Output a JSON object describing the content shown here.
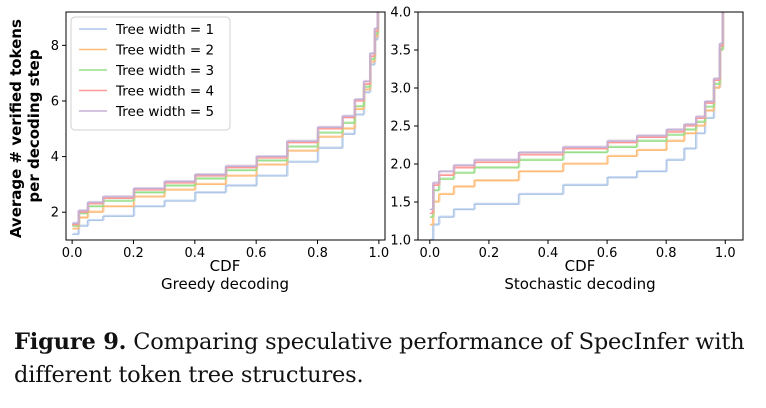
{
  "chart_data": [
    {
      "type": "line",
      "subtitle": "Greedy decoding",
      "xlabel": "CDF",
      "ylabel": "Average # verified tokens per decoding step",
      "xlim": [
        -0.02,
        1.02
      ],
      "ylim": [
        1.0,
        9.2
      ],
      "xticks": [
        0.0,
        0.2,
        0.4,
        0.6,
        0.8,
        1.0
      ],
      "xtick_labels": [
        "0.0",
        "0.2",
        "0.4",
        "0.6",
        "0.8",
        "1.0"
      ],
      "yticks": [
        2,
        4,
        6,
        8
      ],
      "ytick_labels": [
        "2",
        "4",
        "6",
        "8"
      ],
      "legend_position": "top-left",
      "series": [
        {
          "name": "Tree width = 1",
          "color": "#aec7e8",
          "points": [
            [
              0.0,
              1.2
            ],
            [
              0.02,
              1.5
            ],
            [
              0.05,
              1.7
            ],
            [
              0.1,
              1.85
            ],
            [
              0.2,
              2.2
            ],
            [
              0.3,
              2.4
            ],
            [
              0.4,
              2.7
            ],
            [
              0.5,
              2.95
            ],
            [
              0.6,
              3.3
            ],
            [
              0.7,
              3.8
            ],
            [
              0.8,
              4.3
            ],
            [
              0.88,
              4.8
            ],
            [
              0.92,
              5.5
            ],
            [
              0.95,
              6.3
            ],
            [
              0.97,
              7.3
            ],
            [
              0.985,
              8.2
            ],
            [
              0.995,
              9.2
            ]
          ]
        },
        {
          "name": "Tree width = 2",
          "color": "#ffbb78",
          "points": [
            [
              0.0,
              1.4
            ],
            [
              0.02,
              1.8
            ],
            [
              0.05,
              2.0
            ],
            [
              0.1,
              2.2
            ],
            [
              0.2,
              2.55
            ],
            [
              0.3,
              2.8
            ],
            [
              0.4,
              3.0
            ],
            [
              0.5,
              3.3
            ],
            [
              0.6,
              3.7
            ],
            [
              0.7,
              4.2
            ],
            [
              0.8,
              4.7
            ],
            [
              0.88,
              5.0
            ],
            [
              0.92,
              5.7
            ],
            [
              0.95,
              6.4
            ],
            [
              0.97,
              7.4
            ],
            [
              0.985,
              8.3
            ],
            [
              0.995,
              9.2
            ]
          ]
        },
        {
          "name": "Tree width = 3",
          "color": "#98df8a",
          "points": [
            [
              0.0,
              1.5
            ],
            [
              0.02,
              1.95
            ],
            [
              0.05,
              2.2
            ],
            [
              0.1,
              2.4
            ],
            [
              0.2,
              2.7
            ],
            [
              0.3,
              2.95
            ],
            [
              0.4,
              3.2
            ],
            [
              0.5,
              3.5
            ],
            [
              0.6,
              3.85
            ],
            [
              0.7,
              4.35
            ],
            [
              0.8,
              4.85
            ],
            [
              0.88,
              5.2
            ],
            [
              0.92,
              5.8
            ],
            [
              0.95,
              6.5
            ],
            [
              0.97,
              7.5
            ],
            [
              0.985,
              8.4
            ],
            [
              0.995,
              9.2
            ]
          ]
        },
        {
          "name": "Tree width = 4",
          "color": "#ff9896",
          "points": [
            [
              0.0,
              1.55
            ],
            [
              0.02,
              2.0
            ],
            [
              0.05,
              2.3
            ],
            [
              0.1,
              2.5
            ],
            [
              0.2,
              2.8
            ],
            [
              0.3,
              3.05
            ],
            [
              0.4,
              3.3
            ],
            [
              0.5,
              3.6
            ],
            [
              0.6,
              3.95
            ],
            [
              0.7,
              4.5
            ],
            [
              0.8,
              5.0
            ],
            [
              0.88,
              5.4
            ],
            [
              0.92,
              6.0
            ],
            [
              0.95,
              6.6
            ],
            [
              0.97,
              7.6
            ],
            [
              0.985,
              8.5
            ],
            [
              0.995,
              9.2
            ]
          ]
        },
        {
          "name": "Tree width = 5",
          "color": "#c5b0d5",
          "points": [
            [
              0.0,
              1.6
            ],
            [
              0.02,
              2.05
            ],
            [
              0.05,
              2.35
            ],
            [
              0.1,
              2.55
            ],
            [
              0.2,
              2.85
            ],
            [
              0.3,
              3.1
            ],
            [
              0.4,
              3.35
            ],
            [
              0.5,
              3.65
            ],
            [
              0.6,
              4.0
            ],
            [
              0.7,
              4.55
            ],
            [
              0.8,
              5.05
            ],
            [
              0.88,
              5.45
            ],
            [
              0.92,
              6.05
            ],
            [
              0.95,
              6.7
            ],
            [
              0.97,
              7.7
            ],
            [
              0.985,
              8.6
            ],
            [
              0.995,
              9.2
            ]
          ]
        }
      ]
    },
    {
      "type": "line",
      "subtitle": "Stochastic decoding",
      "xlabel": "CDF",
      "ylabel": "",
      "xlim": [
        -0.04,
        1.06
      ],
      "ylim": [
        1.0,
        4.0
      ],
      "xticks": [
        0.0,
        0.2,
        0.4,
        0.6,
        0.8,
        1.0
      ],
      "xtick_labels": [
        "0.0",
        "0.2",
        "0.4",
        "0.6",
        "0.8",
        "1.0"
      ],
      "yticks": [
        1.0,
        1.5,
        2.0,
        2.5,
        3.0,
        3.5,
        4.0
      ],
      "ytick_labels": [
        "1.0",
        "1.5",
        "2.0",
        "2.5",
        "3.0",
        "3.5",
        "4.0"
      ],
      "series": [
        {
          "name": "Tree width = 1",
          "color": "#aec7e8",
          "points": [
            [
              0.0,
              1.0
            ],
            [
              0.01,
              1.2
            ],
            [
              0.03,
              1.3
            ],
            [
              0.08,
              1.4
            ],
            [
              0.15,
              1.47
            ],
            [
              0.3,
              1.6
            ],
            [
              0.45,
              1.72
            ],
            [
              0.6,
              1.82
            ],
            [
              0.7,
              1.9
            ],
            [
              0.8,
              2.05
            ],
            [
              0.86,
              2.2
            ],
            [
              0.9,
              2.4
            ],
            [
              0.93,
              2.6
            ],
            [
              0.96,
              3.0
            ],
            [
              0.98,
              3.5
            ],
            [
              0.99,
              4.0
            ]
          ]
        },
        {
          "name": "Tree width = 2",
          "color": "#ffbb78",
          "points": [
            [
              0.0,
              1.2
            ],
            [
              0.01,
              1.5
            ],
            [
              0.03,
              1.6
            ],
            [
              0.08,
              1.7
            ],
            [
              0.15,
              1.78
            ],
            [
              0.3,
              1.9
            ],
            [
              0.45,
              2.0
            ],
            [
              0.6,
              2.1
            ],
            [
              0.7,
              2.18
            ],
            [
              0.8,
              2.3
            ],
            [
              0.86,
              2.4
            ],
            [
              0.9,
              2.5
            ],
            [
              0.93,
              2.7
            ],
            [
              0.96,
              3.0
            ],
            [
              0.98,
              3.5
            ],
            [
              0.99,
              4.0
            ]
          ]
        },
        {
          "name": "Tree width = 3",
          "color": "#98df8a",
          "points": [
            [
              0.0,
              1.3
            ],
            [
              0.01,
              1.65
            ],
            [
              0.03,
              1.8
            ],
            [
              0.08,
              1.88
            ],
            [
              0.15,
              1.95
            ],
            [
              0.3,
              2.05
            ],
            [
              0.45,
              2.15
            ],
            [
              0.6,
              2.22
            ],
            [
              0.7,
              2.3
            ],
            [
              0.8,
              2.38
            ],
            [
              0.86,
              2.45
            ],
            [
              0.9,
              2.55
            ],
            [
              0.93,
              2.75
            ],
            [
              0.96,
              3.05
            ],
            [
              0.98,
              3.5
            ],
            [
              0.99,
              4.0
            ]
          ]
        },
        {
          "name": "Tree width = 4",
          "color": "#ff9896",
          "points": [
            [
              0.0,
              1.35
            ],
            [
              0.01,
              1.72
            ],
            [
              0.03,
              1.85
            ],
            [
              0.08,
              1.95
            ],
            [
              0.15,
              2.02
            ],
            [
              0.3,
              2.12
            ],
            [
              0.45,
              2.2
            ],
            [
              0.6,
              2.28
            ],
            [
              0.7,
              2.35
            ],
            [
              0.8,
              2.42
            ],
            [
              0.86,
              2.5
            ],
            [
              0.9,
              2.6
            ],
            [
              0.93,
              2.8
            ],
            [
              0.96,
              3.1
            ],
            [
              0.98,
              3.55
            ],
            [
              0.99,
              4.0
            ]
          ]
        },
        {
          "name": "Tree width = 5",
          "color": "#c5b0d5",
          "points": [
            [
              0.0,
              1.4
            ],
            [
              0.01,
              1.75
            ],
            [
              0.03,
              1.9
            ],
            [
              0.08,
              1.98
            ],
            [
              0.15,
              2.05
            ],
            [
              0.3,
              2.15
            ],
            [
              0.45,
              2.22
            ],
            [
              0.6,
              2.3
            ],
            [
              0.7,
              2.37
            ],
            [
              0.8,
              2.45
            ],
            [
              0.86,
              2.52
            ],
            [
              0.9,
              2.62
            ],
            [
              0.93,
              2.82
            ],
            [
              0.96,
              3.12
            ],
            [
              0.98,
              3.58
            ],
            [
              0.99,
              4.0
            ]
          ]
        }
      ]
    }
  ],
  "caption": {
    "label": "Figure 9.",
    "text": " Comparing speculative performance of SpecInfer with different token tree structures."
  }
}
